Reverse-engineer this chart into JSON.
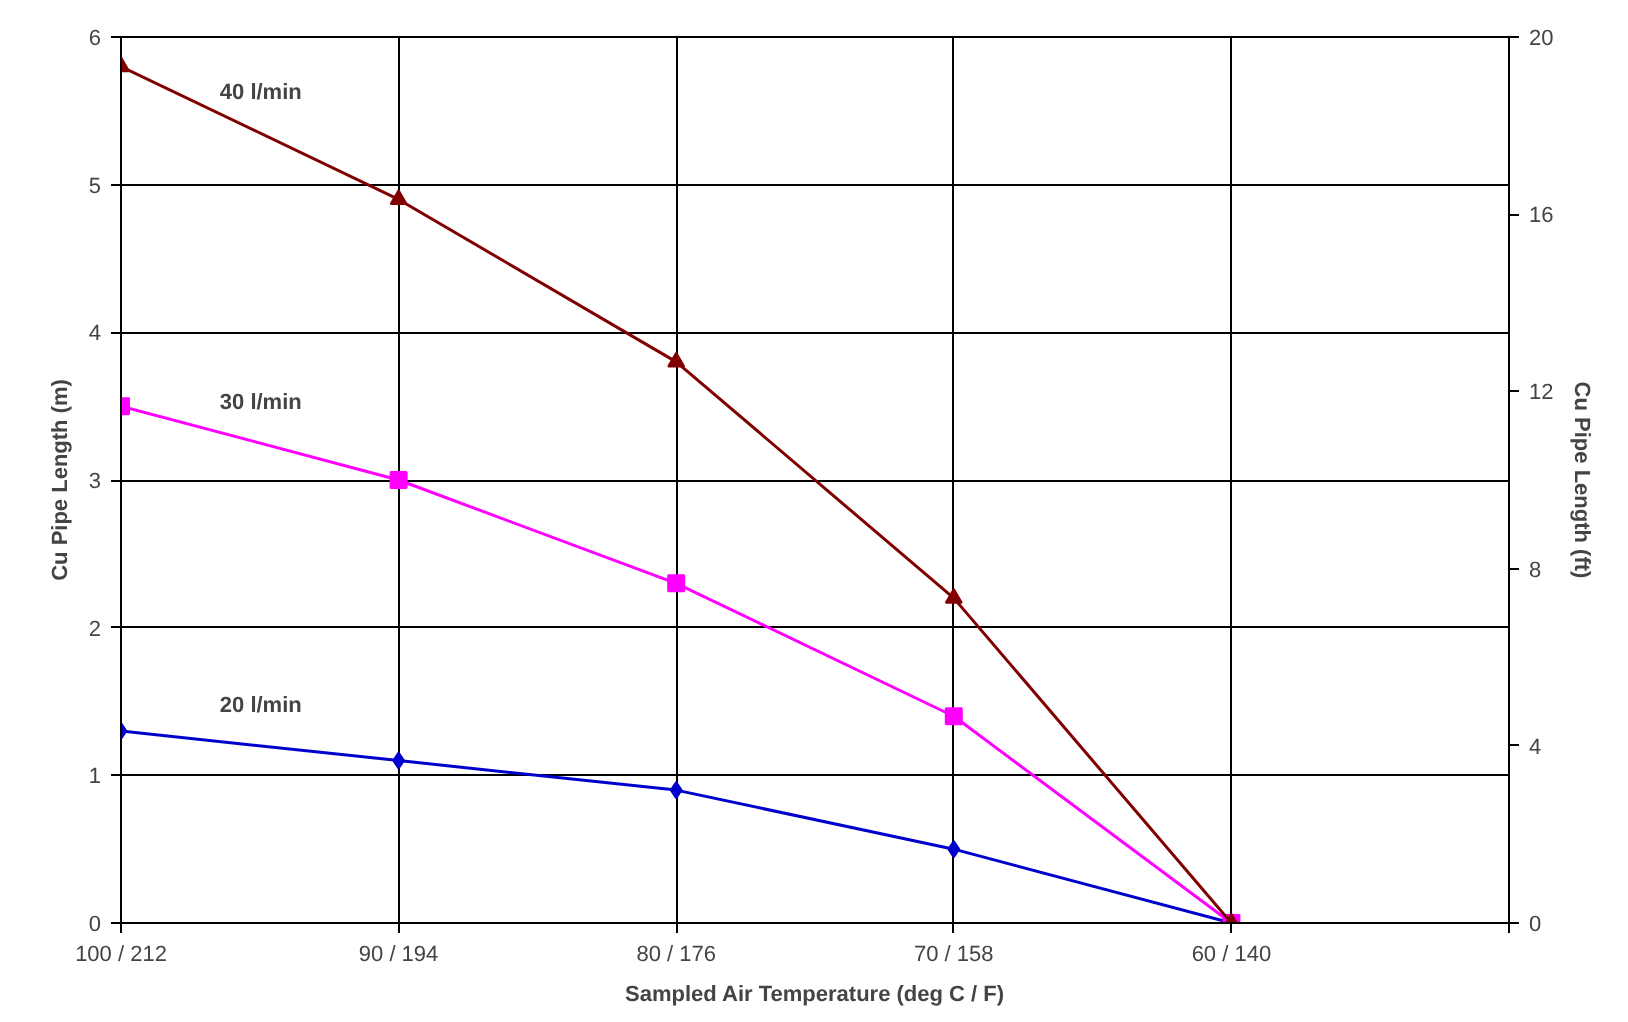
{
  "chart_data": {
    "type": "line",
    "xlabel": "Sampled Air Temperature (deg C / F)",
    "ylabel": "Cu Pipe Length (m)",
    "y2label": "Cu Pipe Length (ft)",
    "categories": [
      "100 / 212",
      "90 / 194",
      "80 / 176",
      "70 / 158",
      "60 / 140",
      null
    ],
    "ylim": [
      0,
      6
    ],
    "yticks": [
      0,
      1,
      2,
      3,
      4,
      5,
      6
    ],
    "y2lim": [
      0,
      20
    ],
    "y2ticks": [
      0,
      4,
      8,
      12,
      16,
      20
    ],
    "grid": true,
    "series": [
      {
        "name": "20 l/min",
        "color": "#0000cc",
        "marker": "diamond",
        "values": [
          1.3,
          1.1,
          0.9,
          0.5,
          0,
          null
        ]
      },
      {
        "name": "30 l/min",
        "color": "#ff00ff",
        "marker": "square",
        "values": [
          3.5,
          3.0,
          2.3,
          1.4,
          0,
          null
        ]
      },
      {
        "name": "40 l/min",
        "color": "#800000",
        "marker": "triangle",
        "values": [
          5.8,
          4.9,
          3.8,
          2.2,
          0,
          null
        ]
      }
    ]
  }
}
